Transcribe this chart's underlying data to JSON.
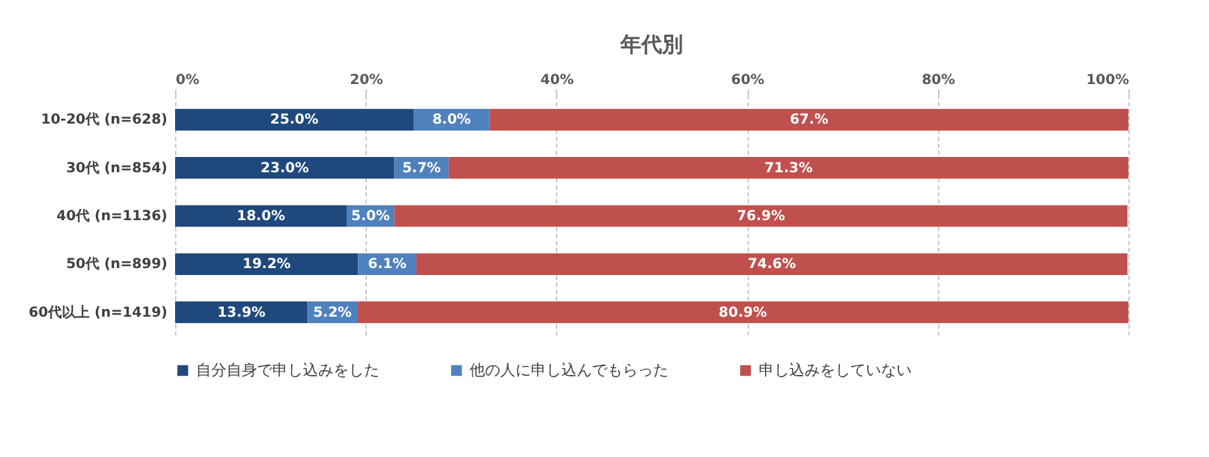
{
  "chart_data": {
    "type": "bar",
    "orientation": "horizontal",
    "stacked": true,
    "title": "年代別",
    "categories": [
      "10-20代 (n=628)",
      "30代 (n=854)",
      "40代 (n=1136)",
      "50代 (n=899)",
      "60代以上 (n=1419)"
    ],
    "series": [
      {
        "name": "自分自身で申し込みをした",
        "color": "#1f497d",
        "values": [
          25.0,
          23.0,
          18.0,
          19.2,
          13.9
        ],
        "value_labels": [
          "25.0%",
          "23.0%",
          "18.0%",
          "19.2%",
          "13.9%"
        ]
      },
      {
        "name": "他の人に申し込んでもらった",
        "color": "#4f81bd",
        "values": [
          8.0,
          5.7,
          5.0,
          6.1,
          5.2
        ],
        "value_labels": [
          "8.0%",
          "5.7%",
          "5.0%",
          "6.1%",
          "5.2%"
        ]
      },
      {
        "name": "申し込みをしていない",
        "color": "#c0504d",
        "values": [
          67.0,
          71.3,
          76.9,
          74.6,
          80.9
        ],
        "value_labels": [
          "67.%",
          "71.3%",
          "76.9%",
          "74.6%",
          "80.9%"
        ]
      }
    ],
    "xlim": [
      0,
      100
    ],
    "xticks": [
      {
        "value": 0,
        "label": "0%"
      },
      {
        "value": 20,
        "label": "20%"
      },
      {
        "value": 40,
        "label": "40%"
      },
      {
        "value": 60,
        "label": "60%"
      },
      {
        "value": 80,
        "label": "80%"
      },
      {
        "value": 100,
        "label": "100%"
      }
    ],
    "grid": true,
    "legend": "bottom"
  }
}
